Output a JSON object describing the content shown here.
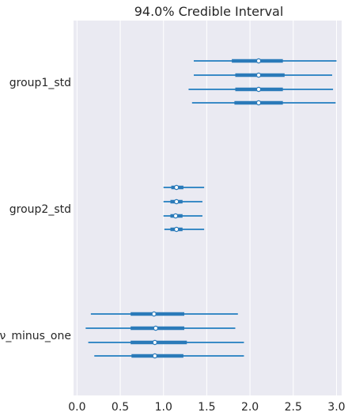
{
  "chart_data": {
    "type": "forest",
    "title": "94.0% Credible Interval",
    "xlabel": "",
    "ylabel": "",
    "xlim": [
      -0.04,
      3.06
    ],
    "x_ticks": [
      0.0,
      0.5,
      1.0,
      1.5,
      2.0,
      2.5,
      3.0
    ],
    "x_tick_labels": [
      "0.0",
      "0.5",
      "1.0",
      "1.5",
      "2.0",
      "2.5",
      "3.0"
    ],
    "grid": true,
    "background": "#eaeaf2",
    "line_color": "#2a7ab9",
    "line_color_light": "#3a8bc6",
    "groups": [
      {
        "label": "group1_std",
        "chains": [
          {
            "hdi_low": 1.35,
            "q25": 1.79,
            "median": 2.1,
            "q75": 2.38,
            "hdi_high": 3.0
          },
          {
            "hdi_low": 1.35,
            "q25": 1.83,
            "median": 2.1,
            "q75": 2.4,
            "hdi_high": 2.95
          },
          {
            "hdi_low": 1.29,
            "q25": 1.83,
            "median": 2.1,
            "q75": 2.38,
            "hdi_high": 2.96
          },
          {
            "hdi_low": 1.33,
            "q25": 1.82,
            "median": 2.1,
            "q75": 2.38,
            "hdi_high": 2.99
          }
        ]
      },
      {
        "label": "group2_std",
        "chains": [
          {
            "hdi_low": 1.0,
            "q25": 1.09,
            "median": 1.15,
            "q75": 1.23,
            "hdi_high": 1.47
          },
          {
            "hdi_low": 1.0,
            "q25": 1.08,
            "median": 1.15,
            "q75": 1.22,
            "hdi_high": 1.45
          },
          {
            "hdi_low": 1.0,
            "q25": 1.08,
            "median": 1.14,
            "q75": 1.22,
            "hdi_high": 1.45
          },
          {
            "hdi_low": 1.01,
            "q25": 1.08,
            "median": 1.15,
            "q75": 1.22,
            "hdi_high": 1.47
          }
        ]
      },
      {
        "label": "ν_minus_one",
        "chains": [
          {
            "hdi_low": 0.16,
            "q25": 0.62,
            "median": 0.89,
            "q75": 1.24,
            "hdi_high": 1.86
          },
          {
            "hdi_low": 0.1,
            "q25": 0.62,
            "median": 0.91,
            "q75": 1.24,
            "hdi_high": 1.83
          },
          {
            "hdi_low": 0.13,
            "q25": 0.62,
            "median": 0.9,
            "q75": 1.27,
            "hdi_high": 1.93
          },
          {
            "hdi_low": 0.2,
            "q25": 0.63,
            "median": 0.9,
            "q75": 1.23,
            "hdi_high": 1.93
          }
        ]
      }
    ]
  }
}
